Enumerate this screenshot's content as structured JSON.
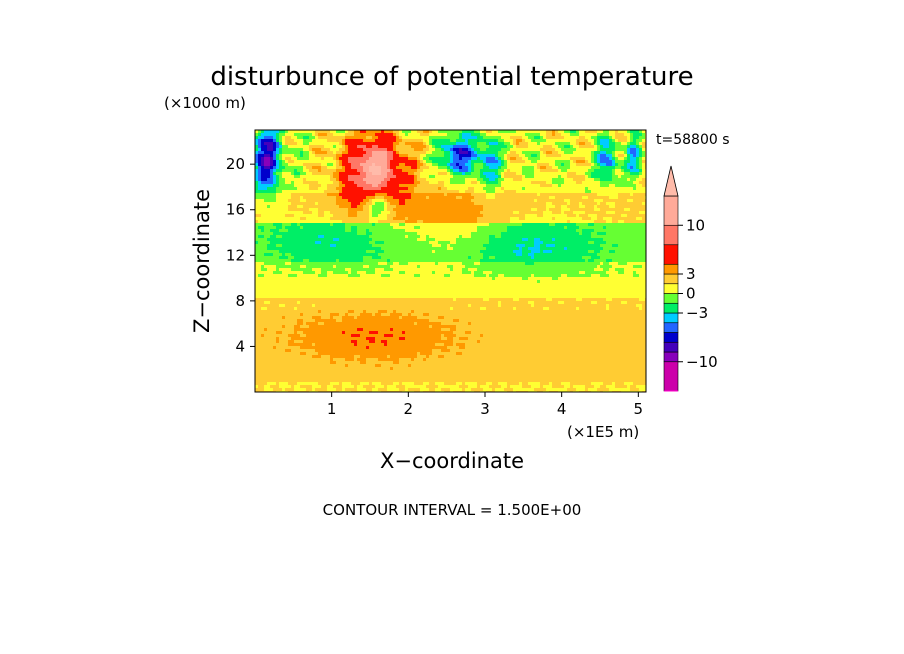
{
  "chart_data": {
    "type": "heatmap",
    "title": "disturbunce of potential temperature",
    "y_unit": "(×1000 m)",
    "x_unit": "(×1E5 m)",
    "xlabel": "X−coordinate",
    "ylabel": "Z−coordinate",
    "time_label": "t=58800 s",
    "footer": "CONTOUR INTERVAL = 1.500E+00",
    "x_ticks": [
      {
        "value": 1,
        "label": "1"
      },
      {
        "value": 2,
        "label": "2"
      },
      {
        "value": 3,
        "label": "3"
      },
      {
        "value": 4,
        "label": "4"
      },
      {
        "value": 5,
        "label": "5"
      }
    ],
    "y_ticks": [
      {
        "value": 4,
        "label": "4"
      },
      {
        "value": 8,
        "label": "8"
      },
      {
        "value": 12,
        "label": "12"
      },
      {
        "value": 16,
        "label": "16"
      },
      {
        "value": 20,
        "label": "20"
      }
    ],
    "xlim": [
      0,
      5.1
    ],
    "ylim": [
      0,
      23
    ],
    "contour_interval": 1.5,
    "colorbar": {
      "levels": [
        -15,
        -10.5,
        -9,
        -7.5,
        -6,
        -4.5,
        -3,
        -1.5,
        0,
        1.5,
        3,
        4.5,
        7.5,
        10.5,
        15
      ],
      "colors": [
        "#ff00cc",
        "#cc00aa",
        "#8800bb",
        "#4400bb",
        "#0000cc",
        "#2266ff",
        "#00ccff",
        "#00ee66",
        "#66ff33",
        "#ffff33",
        "#ffcc33",
        "#ff9900",
        "#ff1100",
        "#ff7766",
        "#ffaa99",
        "#ffbbaa"
      ],
      "tick_labels": [
        {
          "value": 10.5,
          "label": "10"
        },
        {
          "value": 3,
          "label": "3"
        },
        {
          "value": 0,
          "label": "0"
        },
        {
          "value": -3,
          "label": "−3"
        },
        {
          "value": -10.5,
          "label": "−10"
        }
      ]
    },
    "field_features": [
      {
        "x": 1.55,
        "z": 19.2,
        "amp": 9.5,
        "sx": 0.3,
        "sz": 2.4
      },
      {
        "x": 1.55,
        "z": 19.6,
        "amp": 5,
        "sx": 0.12,
        "sz": 1.2
      },
      {
        "x": 0.15,
        "z": 20.5,
        "amp": -8.5,
        "sx": 0.14,
        "sz": 2.2
      },
      {
        "x": 2.65,
        "z": 20.8,
        "amp": -7.5,
        "sx": 0.16,
        "sz": 1.3
      },
      {
        "x": 3.05,
        "z": 20.2,
        "amp": -5,
        "sx": 0.11,
        "sz": 1.8
      },
      {
        "x": 4.6,
        "z": 20.3,
        "amp": -6,
        "sx": 0.09,
        "sz": 1.4
      },
      {
        "x": 4.95,
        "z": 20.5,
        "amp": -5,
        "sx": 0.07,
        "sz": 1.2
      },
      {
        "x": 1.6,
        "z": 16.5,
        "amp": -7.5,
        "sx": 0.13,
        "sz": 1.0
      },
      {
        "x": 1.55,
        "z": 4.8,
        "amp": 2.2,
        "sx": 0.7,
        "sz": 1.4
      },
      {
        "x": 2.6,
        "z": 15.5,
        "amp": 2.2,
        "sx": 0.45,
        "sz": 2.2
      },
      {
        "x": 3.6,
        "z": 12.8,
        "amp": -2.5,
        "sx": 0.6,
        "sz": 1.6
      },
      {
        "x": 1.0,
        "z": 13.2,
        "amp": -2.2,
        "sx": 0.55,
        "sz": 1.5
      }
    ]
  }
}
